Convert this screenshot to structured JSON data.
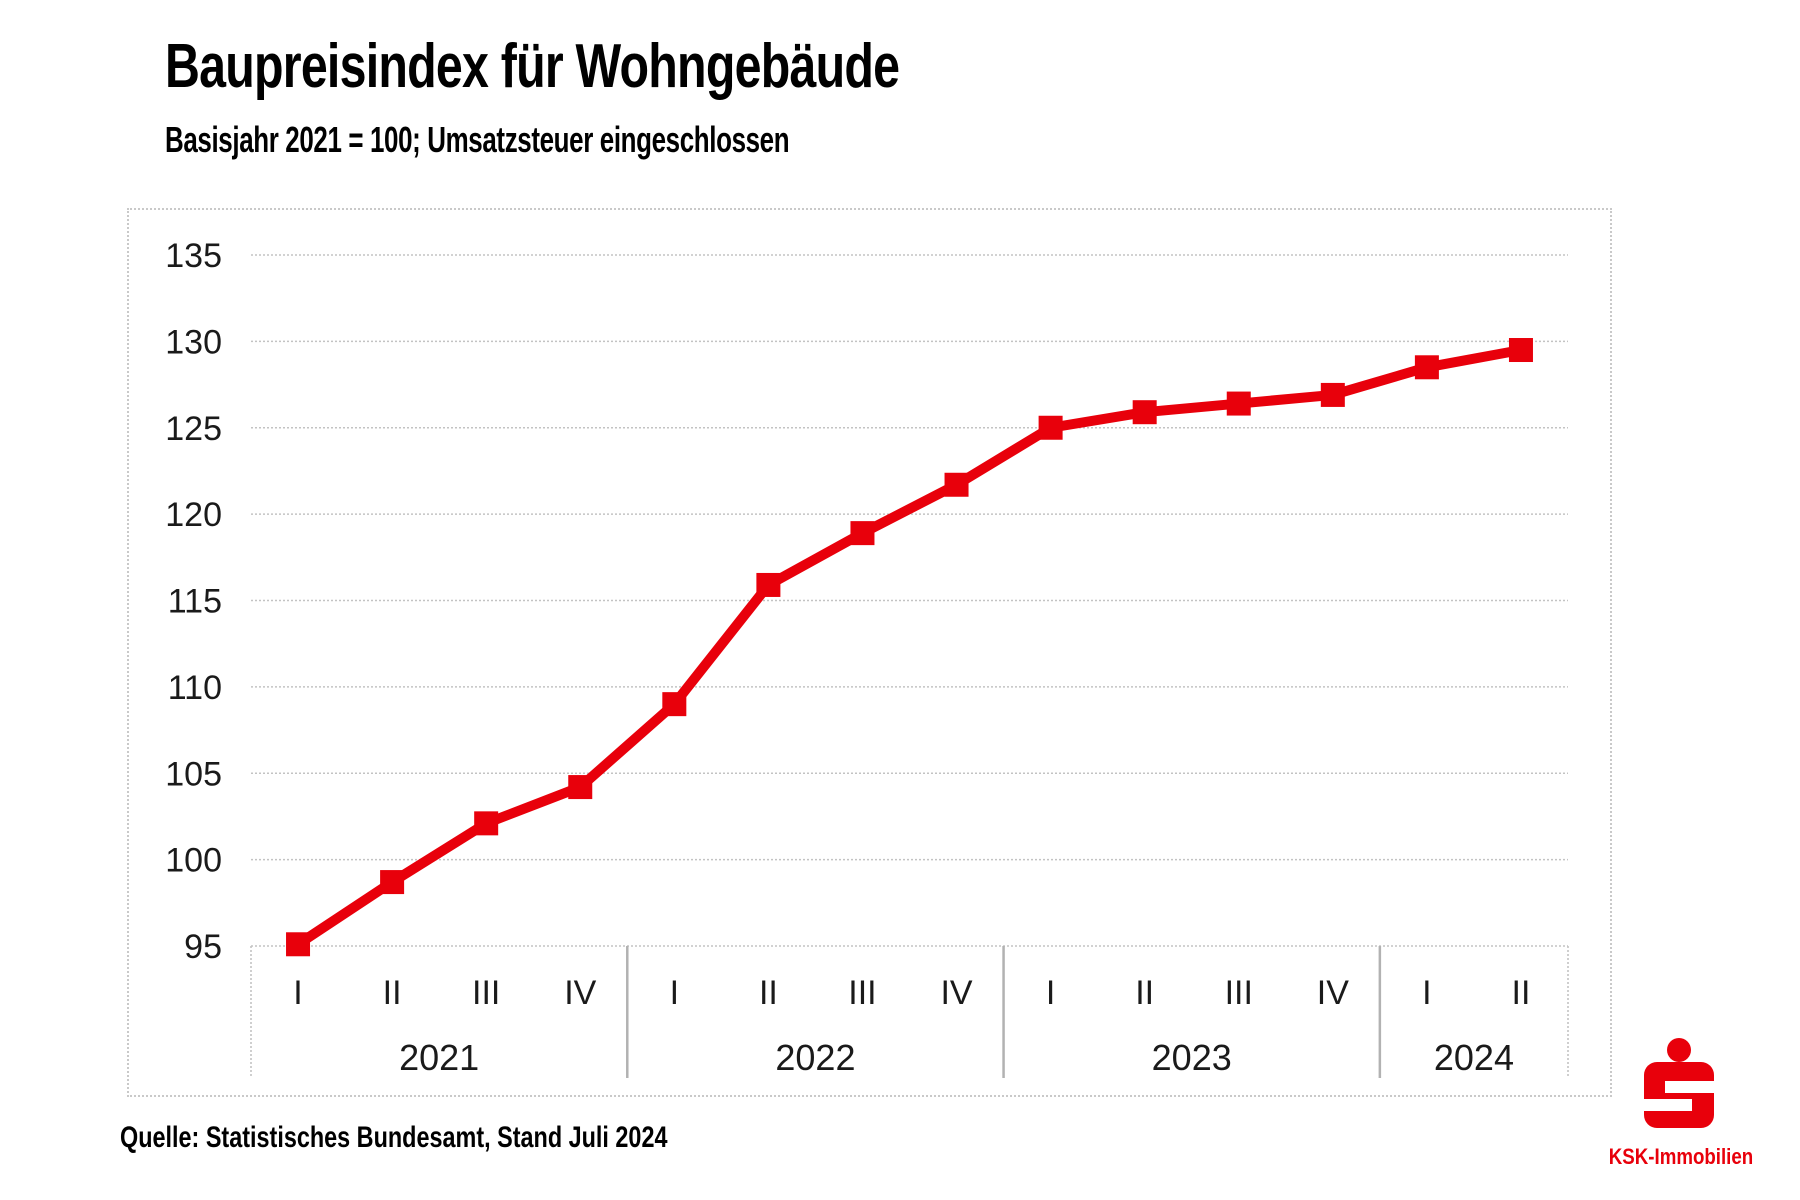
{
  "page": {
    "title": "Baupreisindex für Wohngebäude",
    "subtitle": "Basisjahr 2021 = 100; Umsatzsteuer eingeschlossen",
    "source": "Quelle: Statistisches Bundesamt, Stand Juli 2024"
  },
  "logo": {
    "brand": "KSK-Immobilien",
    "icon": "sparkasse-s-icon"
  },
  "colors": {
    "series_red": "#e8000b",
    "logo_red": "#e8000b",
    "grid": "#c3c3c3",
    "divider": "#b2b2b2",
    "box_border": "#c9c9c9",
    "tick_text": "#1a1a1a",
    "background": "#ffffff"
  },
  "chart_data": {
    "type": "line",
    "title": "Baupreisindex für Wohngebäude",
    "subtitle": "Basisjahr 2021 = 100; Umsatzsteuer eingeschlossen",
    "source": "Quelle: Statistisches Bundesamt, Stand Juli 2024",
    "x_tick_labels": [
      "I",
      "II",
      "III",
      "IV",
      "I",
      "II",
      "III",
      "IV",
      "I",
      "II",
      "III",
      "IV",
      "I",
      "II"
    ],
    "year_groups": [
      {
        "label": "2021",
        "quarters": 4
      },
      {
        "label": "2022",
        "quarters": 4
      },
      {
        "label": "2023",
        "quarters": 4
      },
      {
        "label": "2024",
        "quarters": 2
      }
    ],
    "series": [
      {
        "name": "Baupreisindex für Wohngebäude",
        "values": [
          95.1,
          98.7,
          102.1,
          104.2,
          109.0,
          115.9,
          118.9,
          121.7,
          125.0,
          125.9,
          126.4,
          126.9,
          128.5,
          129.5
        ]
      }
    ],
    "y_ticks": [
      95,
      100,
      105,
      110,
      115,
      120,
      125,
      130,
      135
    ],
    "ylim": [
      95,
      135
    ],
    "grid": true,
    "marker": "square",
    "legend": false
  }
}
